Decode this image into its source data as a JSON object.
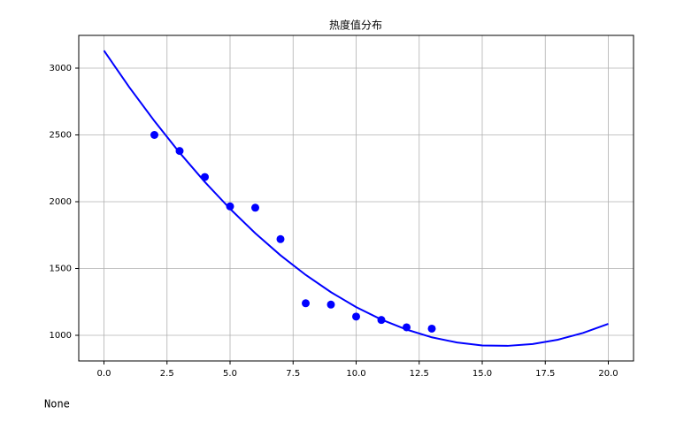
{
  "chart_data": {
    "type": "scatter",
    "title": "热度值分布",
    "series": [
      {
        "kind": "scatter",
        "color": "#0000ff",
        "x": [
          2,
          3,
          4,
          5,
          6,
          7,
          8,
          9,
          10,
          11,
          12,
          13
        ],
        "values": [
          2500,
          2380,
          2185,
          1965,
          1955,
          1720,
          1240,
          1230,
          1140,
          1115,
          1060,
          1050
        ]
      },
      {
        "kind": "line",
        "color": "#0000ff",
        "x": [
          0,
          1,
          2,
          3,
          4,
          5,
          6,
          7,
          8,
          9,
          10,
          11,
          12,
          13,
          14,
          15,
          16,
          17,
          18,
          19,
          20
        ],
        "values": [
          3131,
          2858,
          2604,
          2367,
          2148,
          1947,
          1764,
          1599,
          1452,
          1323,
          1211,
          1118,
          1043,
          985,
          946,
          924,
          921,
          935,
          967,
          1018,
          1086
        ]
      }
    ],
    "xlim": [
      -1,
      21
    ],
    "ylim": [
      808,
      3245
    ],
    "xticks": [
      {
        "value": 0,
        "label": "0.0"
      },
      {
        "value": 2.5,
        "label": "2.5"
      },
      {
        "value": 5,
        "label": "5.0"
      },
      {
        "value": 7.5,
        "label": "7.5"
      },
      {
        "value": 10,
        "label": "10.0"
      },
      {
        "value": 12.5,
        "label": "12.5"
      },
      {
        "value": 15,
        "label": "15.0"
      },
      {
        "value": 17.5,
        "label": "17.5"
      },
      {
        "value": 20,
        "label": "20.0"
      }
    ],
    "yticks": [
      1000,
      1500,
      2000,
      2500,
      3000
    ],
    "grid": true
  },
  "output_text": "None"
}
